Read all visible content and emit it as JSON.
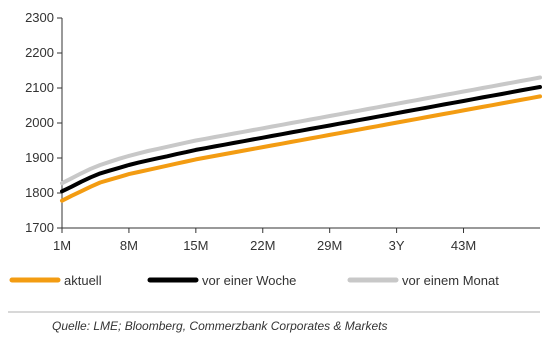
{
  "chart_data": {
    "type": "line",
    "title": "",
    "xlabel": "",
    "ylabel": "",
    "x": [
      "1M",
      "2M",
      "3M",
      "4M",
      "5M",
      "6M",
      "7M",
      "8M",
      "9M",
      "10M",
      "11M",
      "12M",
      "13M",
      "14M",
      "15M",
      "16M",
      "17M",
      "18M",
      "19M",
      "20M",
      "21M",
      "22M",
      "23M",
      "24M",
      "25M",
      "26M",
      "27M",
      "28M",
      "29M",
      "30M",
      "31M",
      "32M",
      "33M",
      "34M",
      "35M",
      "36M",
      "37M",
      "38M",
      "39M",
      "40M",
      "41M",
      "42M",
      "43M",
      "44M",
      "45M",
      "46M",
      "47M",
      "48M",
      "49M",
      "50M",
      "51M"
    ],
    "x_tick_labels": [
      "1M",
      "8M",
      "15M",
      "22M",
      "29M",
      "3Y",
      "43M"
    ],
    "ylim": [
      1700,
      2300
    ],
    "y_ticks": [
      1700,
      1800,
      1900,
      2000,
      2100,
      2200,
      2300
    ],
    "grid": false,
    "legend_placement": "bottom",
    "series": [
      {
        "name": "aktuell",
        "color": "#f39c12",
        "values": [
          1778,
          1792,
          1805,
          1818,
          1830,
          1838,
          1846,
          1854,
          1860,
          1866,
          1872,
          1878,
          1884,
          1890,
          1896,
          1901,
          1906,
          1911,
          1916,
          1921,
          1926,
          1931,
          1936,
          1941,
          1946,
          1951,
          1956,
          1961,
          1966,
          1971,
          1976,
          1981,
          1986,
          1991,
          1996,
          2001,
          2006,
          2011,
          2016,
          2021,
          2026,
          2031,
          2036,
          2041,
          2046,
          2051,
          2056,
          2061,
          2066,
          2071,
          2076
        ]
      },
      {
        "name": "vor einer Woche",
        "color": "#000000",
        "values": [
          1805,
          1818,
          1832,
          1845,
          1856,
          1864,
          1872,
          1880,
          1887,
          1893,
          1899,
          1905,
          1911,
          1917,
          1923,
          1928,
          1933,
          1938,
          1943,
          1948,
          1953,
          1958,
          1963,
          1968,
          1973,
          1978,
          1983,
          1988,
          1993,
          1998,
          2003,
          2008,
          2013,
          2018,
          2023,
          2028,
          2033,
          2038,
          2043,
          2048,
          2053,
          2058,
          2063,
          2068,
          2073,
          2078,
          2083,
          2088,
          2093,
          2098,
          2103
        ]
      },
      {
        "name": "vor einem Monat",
        "color": "#c8c8c8",
        "values": [
          1828,
          1842,
          1856,
          1869,
          1880,
          1889,
          1898,
          1906,
          1913,
          1920,
          1926,
          1932,
          1938,
          1944,
          1950,
          1955,
          1960,
          1965,
          1970,
          1975,
          1980,
          1985,
          1990,
          1995,
          2000,
          2005,
          2010,
          2015,
          2020,
          2025,
          2030,
          2035,
          2040,
          2045,
          2050,
          2055,
          2060,
          2065,
          2070,
          2075,
          2080,
          2085,
          2090,
          2095,
          2100,
          2105,
          2110,
          2115,
          2120,
          2125,
          2130
        ]
      }
    ]
  },
  "source": "Quelle: LME; Bloomberg, Commerzbank Corporates & Markets"
}
